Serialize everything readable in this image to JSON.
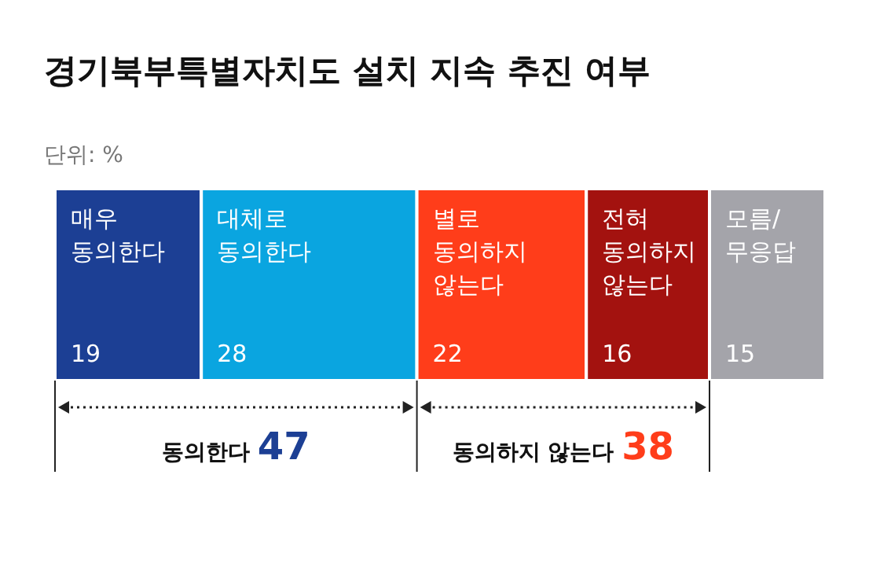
{
  "chart_data": {
    "type": "bar",
    "orientation": "horizontal",
    "stacked": true,
    "title": "경기북부특별자치도 설치 지속 추진 여부",
    "subtitle": "단위: %",
    "categories": [
      null
    ],
    "xlim": [
      0,
      100
    ],
    "tick_labels": false,
    "legend": false,
    "data_labels": true,
    "series": [
      {
        "name": "매우 동의한다",
        "color": "#1c3f94",
        "values": [
          19
        ]
      },
      {
        "name": "대체로 동의한다",
        "color": "#0aa5e0",
        "values": [
          28
        ]
      },
      {
        "name": "별로 동의하지 않는다",
        "color": "#ff3d1a",
        "values": [
          22
        ]
      },
      {
        "name": "전혀 동의하지 않는다",
        "color": "#a3120f",
        "values": [
          16
        ]
      },
      {
        "name": "모름/무응답",
        "color": "#a4a4aa",
        "values": [
          15
        ]
      }
    ],
    "annotations": [
      "동의한다 47",
      "동의하지 않는다 38"
    ]
  }
}
